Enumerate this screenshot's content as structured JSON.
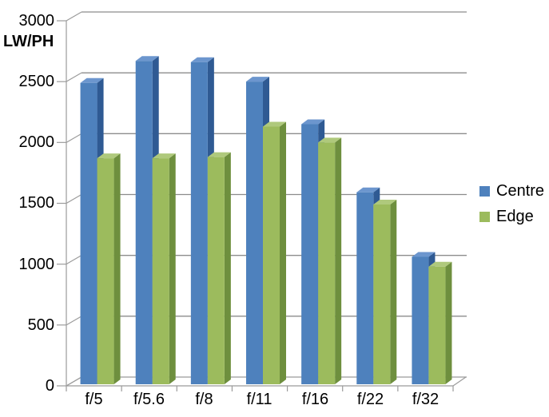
{
  "chart_data": {
    "type": "bar",
    "variant": "3d-clustered-column",
    "title": "",
    "xlabel": "",
    "ylabel": "LW/PH",
    "categories": [
      "f/5",
      "f/5.6",
      "f/8",
      "f/11",
      "f/16",
      "f/22",
      "f/32"
    ],
    "series": [
      {
        "name": "Centre",
        "color": "#4E81BD",
        "color_top": "#6C96CE",
        "color_side": "#2F5A93",
        "values": [
          2490,
          2670,
          2660,
          2500,
          2150,
          1590,
          1060
        ]
      },
      {
        "name": "Edge",
        "color": "#9CBB5D",
        "color_top": "#AFC97C",
        "color_side": "#6E8F3E",
        "values": [
          1870,
          1870,
          1880,
          2130,
          2000,
          1490,
          980
        ]
      }
    ],
    "ylim": [
      0,
      3000
    ],
    "ytick_step": 500,
    "yticks": [
      "0",
      "500",
      "1000",
      "1500",
      "2000",
      "2500",
      "3000"
    ],
    "grid": "horizontal-back-wall",
    "legend_position": "right"
  },
  "colors": {
    "background": "#FFFFFF",
    "gridline": "#8C8C8C",
    "axis": "#9B9B9B",
    "text": "#000000"
  }
}
